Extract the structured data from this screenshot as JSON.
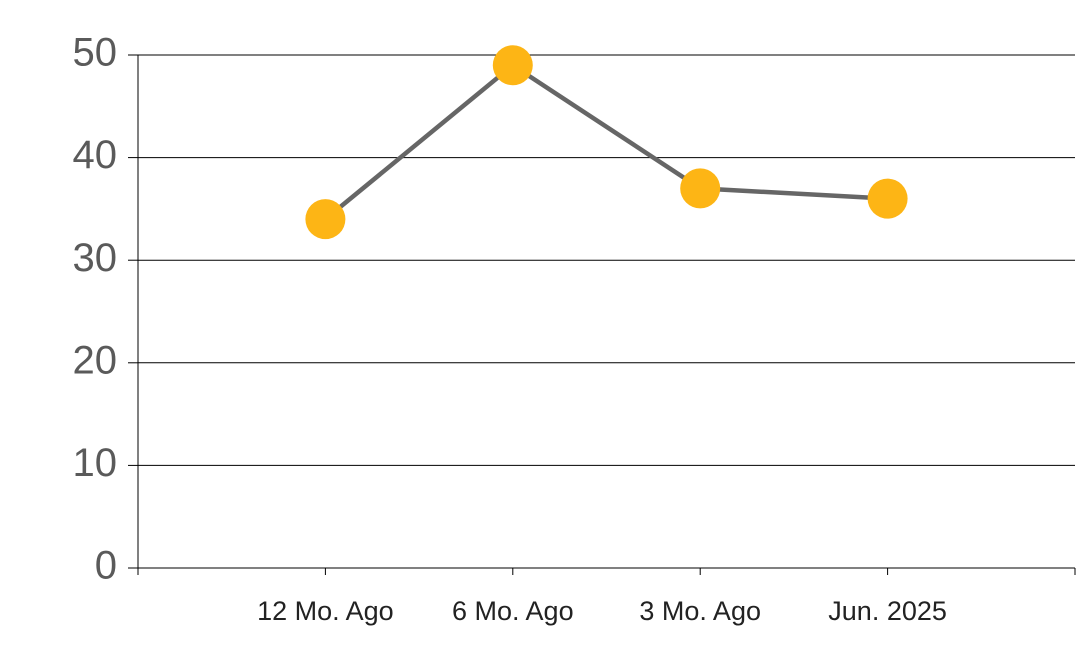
{
  "chart_data": {
    "type": "line",
    "categories": [
      "12 Mo. Ago",
      "6 Mo. Ago",
      "3 Mo. Ago",
      "Jun. 2025"
    ],
    "values": [
      34,
      49,
      37,
      36
    ],
    "color": "#fdb515",
    "line_color": "#666666",
    "ylim": [
      0,
      50
    ],
    "yticks": [
      0,
      10,
      20,
      30,
      40,
      50
    ],
    "grid": true
  }
}
